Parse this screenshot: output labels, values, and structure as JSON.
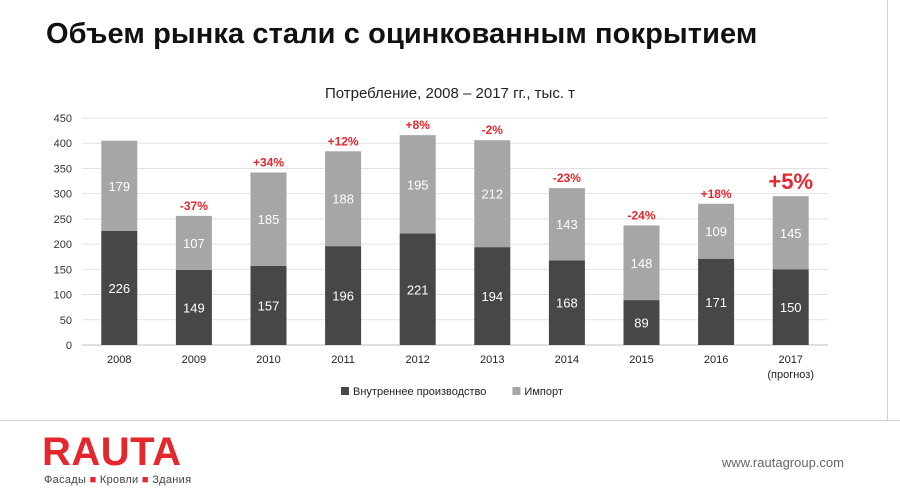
{
  "slide": {
    "title": "Объем рынка стали с оцинкованным покрытием",
    "logo": "RAUTA",
    "tagline": [
      "Фасады",
      "Кровли",
      "Здания"
    ],
    "website": "www.rautagroup.com"
  },
  "chart_data": {
    "type": "bar",
    "stacked": true,
    "title": "Потребление, 2008 – 2017 гг., тыс. т",
    "categories": [
      "2008",
      "2009",
      "2010",
      "2011",
      "2012",
      "2013",
      "2014",
      "2015",
      "2016",
      "2017"
    ],
    "category_notes": [
      "",
      "",
      "",
      "",
      "",
      "",
      "",
      "",
      "",
      "(прогноз)"
    ],
    "series": [
      {
        "name": "Внутреннее производство",
        "color": "#474747",
        "values": [
          226,
          149,
          157,
          196,
          221,
          194,
          168,
          89,
          171,
          150
        ]
      },
      {
        "name": "Импорт",
        "color": "#a6a6a6",
        "values": [
          179,
          107,
          185,
          188,
          195,
          212,
          143,
          148,
          109,
          145
        ]
      }
    ],
    "growth_labels": [
      "",
      "-37%",
      "+34%",
      "+12%",
      "+8%",
      "-2%",
      "-23%",
      "-24%",
      "+18%",
      "+5%"
    ],
    "growth_color": "#e3272d",
    "yticks": [
      0,
      50,
      100,
      150,
      200,
      250,
      300,
      350,
      400,
      450
    ],
    "ylim": [
      0,
      450
    ],
    "grid": true,
    "legend_position": "bottom"
  }
}
